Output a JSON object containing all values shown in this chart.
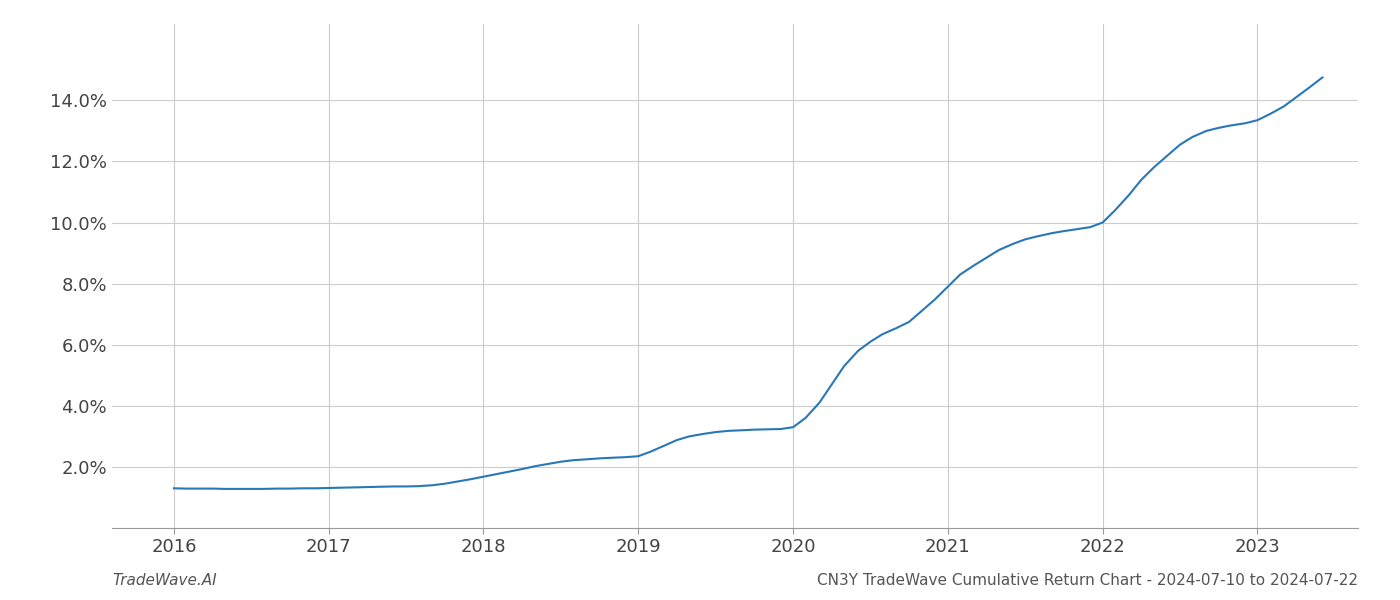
{
  "x_values": [
    2016.0,
    2016.08,
    2016.17,
    2016.25,
    2016.33,
    2016.42,
    2016.5,
    2016.58,
    2016.67,
    2016.75,
    2016.83,
    2016.92,
    2017.0,
    2017.08,
    2017.17,
    2017.25,
    2017.33,
    2017.42,
    2017.5,
    2017.58,
    2017.67,
    2017.75,
    2017.83,
    2017.92,
    2018.0,
    2018.08,
    2018.17,
    2018.25,
    2018.33,
    2018.42,
    2018.5,
    2018.58,
    2018.67,
    2018.75,
    2018.83,
    2018.92,
    2019.0,
    2019.08,
    2019.17,
    2019.25,
    2019.33,
    2019.42,
    2019.5,
    2019.58,
    2019.67,
    2019.75,
    2019.83,
    2019.92,
    2020.0,
    2020.08,
    2020.17,
    2020.25,
    2020.33,
    2020.42,
    2020.5,
    2020.58,
    2020.67,
    2020.75,
    2020.83,
    2020.92,
    2021.0,
    2021.08,
    2021.17,
    2021.25,
    2021.33,
    2021.42,
    2021.5,
    2021.58,
    2021.67,
    2021.75,
    2021.83,
    2021.92,
    2022.0,
    2022.08,
    2022.17,
    2022.25,
    2022.33,
    2022.42,
    2022.5,
    2022.58,
    2022.67,
    2022.75,
    2022.83,
    2022.92,
    2023.0,
    2023.08,
    2023.17,
    2023.25,
    2023.33,
    2023.42
  ],
  "y_values": [
    1.3,
    1.29,
    1.29,
    1.29,
    1.28,
    1.28,
    1.28,
    1.28,
    1.29,
    1.29,
    1.3,
    1.3,
    1.31,
    1.32,
    1.33,
    1.34,
    1.35,
    1.36,
    1.36,
    1.37,
    1.4,
    1.45,
    1.52,
    1.6,
    1.68,
    1.76,
    1.85,
    1.93,
    2.02,
    2.1,
    2.17,
    2.22,
    2.25,
    2.28,
    2.3,
    2.32,
    2.35,
    2.5,
    2.7,
    2.88,
    3.0,
    3.08,
    3.14,
    3.18,
    3.2,
    3.22,
    3.23,
    3.24,
    3.3,
    3.6,
    4.1,
    4.7,
    5.3,
    5.8,
    6.1,
    6.35,
    6.55,
    6.75,
    7.1,
    7.5,
    7.9,
    8.3,
    8.6,
    8.85,
    9.1,
    9.3,
    9.45,
    9.55,
    9.65,
    9.72,
    9.78,
    9.85,
    10.0,
    10.4,
    10.9,
    11.4,
    11.8,
    12.2,
    12.55,
    12.8,
    13.0,
    13.1,
    13.18,
    13.25,
    13.35,
    13.55,
    13.8,
    14.1,
    14.4,
    14.75
  ],
  "line_color": "#2878b8",
  "line_width": 1.5,
  "background_color": "#ffffff",
  "grid_color": "#cccccc",
  "footer_left": "TradeWave.AI",
  "footer_right": "CN3Y TradeWave Cumulative Return Chart - 2024-07-10 to 2024-07-22",
  "xlim": [
    2015.6,
    2023.65
  ],
  "ylim": [
    0.0,
    16.5
  ],
  "yticks": [
    2.0,
    4.0,
    6.0,
    8.0,
    10.0,
    12.0,
    14.0
  ],
  "xticks": [
    2016,
    2017,
    2018,
    2019,
    2020,
    2021,
    2022,
    2023
  ],
  "tick_fontsize": 13,
  "footer_fontsize": 11
}
